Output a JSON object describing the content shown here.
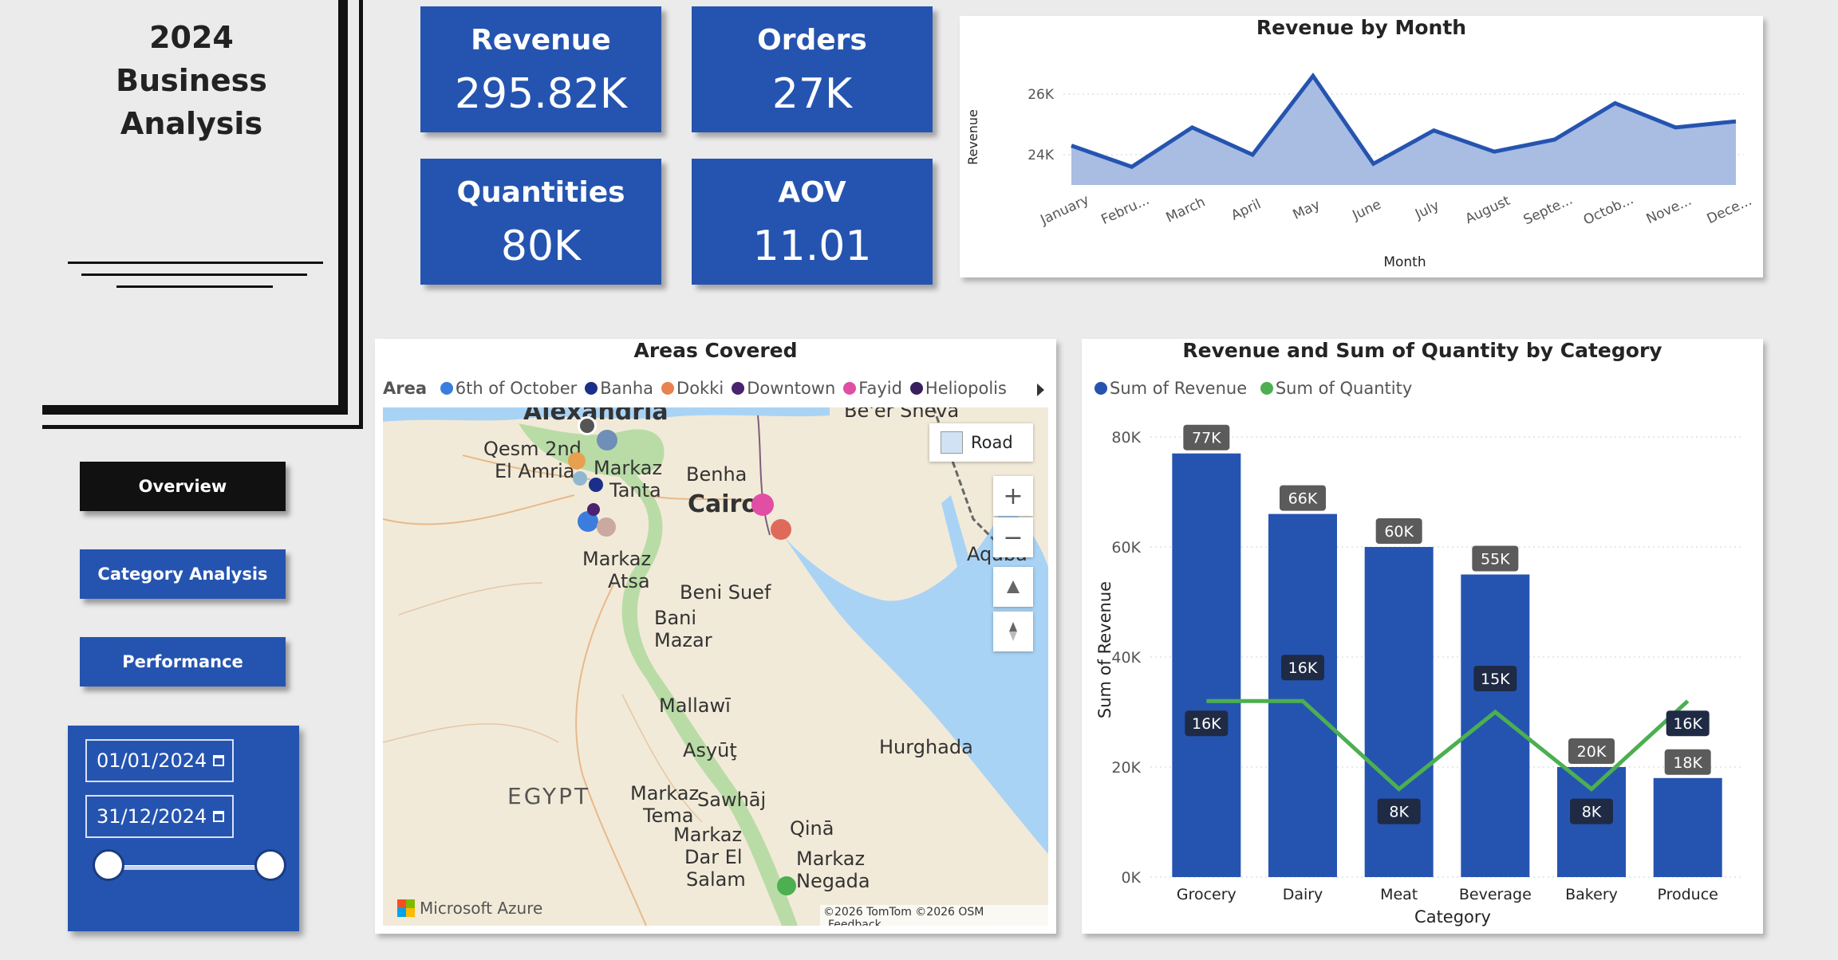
{
  "title": {
    "line1": "2024",
    "line2": "Business",
    "line3": "Analysis"
  },
  "nav": [
    {
      "label": "Overview",
      "color": "#111111"
    },
    {
      "label": "Category Analysis",
      "color": "#2554b0"
    },
    {
      "label": "Performance",
      "color": "#2554b0"
    }
  ],
  "date_slicer": {
    "start": "01/01/2024",
    "end": "31/12/2024"
  },
  "kpis": [
    {
      "label": "Revenue",
      "value": "295.82K"
    },
    {
      "label": "Orders",
      "value": "27K"
    },
    {
      "label": "Quantities",
      "value": "80K"
    },
    {
      "label": "AOV",
      "value": "11.01"
    }
  ],
  "colors": {
    "primary": "#2554b0",
    "area_fill": "#a9bce2",
    "quantity_line": "#4caf50",
    "label_bg": "#5b5b5b",
    "label_dark": "#1f2a44"
  },
  "chart_data": [
    {
      "type": "area",
      "title": "Revenue by Month",
      "xlabel": "Month",
      "ylabel": "Revenue",
      "x": [
        "January",
        "Febru...",
        "March",
        "April",
        "May",
        "June",
        "July",
        "August",
        "Septe...",
        "Octob...",
        "Nove...",
        "Dece..."
      ],
      "values": [
        24300,
        23600,
        24900,
        24000,
        26600,
        23700,
        24800,
        24100,
        24500,
        25700,
        24900,
        25100
      ],
      "ylim": [
        23000,
        27000
      ],
      "yticks": [
        {
          "v": 24000,
          "label": "24K"
        },
        {
          "v": 26000,
          "label": "26K"
        }
      ],
      "grid": true
    },
    {
      "type": "bar",
      "title": "Revenue and Sum of Quantity by Category",
      "xlabel": "Category",
      "ylabel": "Sum of Revenue",
      "categories": [
        "Grocery",
        "Dairy",
        "Meat",
        "Beverage",
        "Bakery",
        "Produce"
      ],
      "series": [
        {
          "name": "Sum of Revenue",
          "values": [
            77000,
            66000,
            60000,
            55000,
            20000,
            18000
          ],
          "labels": [
            "77K",
            "66K",
            "60K",
            "55K",
            "20K",
            "18K"
          ]
        },
        {
          "name": "Sum of Quantity",
          "values": [
            16000,
            16000,
            8000,
            15000,
            8000,
            16000
          ],
          "labels": [
            "16K",
            "16K",
            "8K",
            "15K",
            "8K",
            "16K"
          ]
        }
      ],
      "ylim": [
        0,
        80000
      ],
      "yticks": [
        {
          "v": 0,
          "label": "0K"
        },
        {
          "v": 20000,
          "label": "20K"
        },
        {
          "v": 40000,
          "label": "40K"
        },
        {
          "v": 60000,
          "label": "60K"
        },
        {
          "v": 80000,
          "label": "80K"
        }
      ],
      "quantity_ylim": [
        0,
        40000
      ],
      "legend": "top-left",
      "grid": true
    }
  ],
  "map": {
    "title": "Areas Covered",
    "legend_title": "Area",
    "legend": [
      {
        "name": "6th of October",
        "color": "#3b7ddd"
      },
      {
        "name": "Banha",
        "color": "#1b2f8a"
      },
      {
        "name": "Dokki",
        "color": "#e8824e"
      },
      {
        "name": "Downtown",
        "color": "#4a2270"
      },
      {
        "name": "Fayid",
        "color": "#e04fa3"
      },
      {
        "name": "Heliopolis",
        "color": "#3a1f5e"
      }
    ],
    "road_label": "Road",
    "zoom_in": "+",
    "zoom_out": "−",
    "attribution": "©2026 TomTom ©2026 OSM",
    "feedback": "Feedback",
    "brand": "Microsoft Azure",
    "places": [
      "Alexandria",
      "Be'er Sheva",
      "Qesm 2nd",
      "El Amria",
      "Markaz",
      "Tanta",
      "Benha",
      "Cairo",
      "Markaz",
      "Atsa",
      "Beni Suef",
      "Bani",
      "Mazar",
      "Aqaba",
      "Mallawī",
      "Asyūţ",
      "Hurghada",
      "EGYPT",
      "Markaz",
      "Tema",
      "Sawhāj",
      "Markaz",
      "Dar El",
      "Salam",
      "Qinā",
      "Markaz",
      "Negada"
    ]
  }
}
